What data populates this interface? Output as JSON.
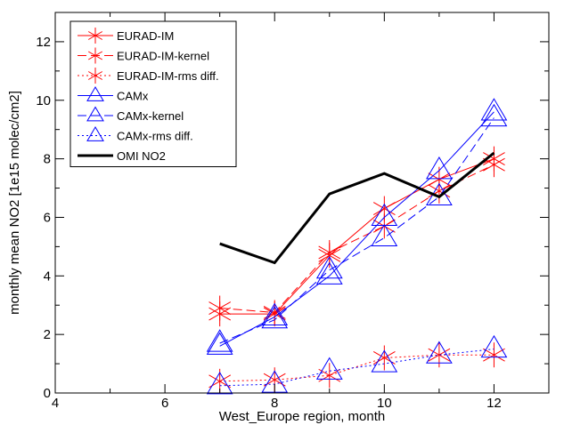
{
  "chart_data": {
    "type": "line",
    "title": "",
    "xlabel": "West_Europe region, month",
    "ylabel": "monthly mean NO2 [1e15 molec/cm2]",
    "xlim": [
      4,
      13
    ],
    "ylim": [
      0,
      13
    ],
    "xticks": [
      4,
      6,
      8,
      10,
      12
    ],
    "yticks": [
      0,
      2,
      4,
      6,
      8,
      10,
      12
    ],
    "grid": false,
    "legend_position": "top-left",
    "series": [
      {
        "name": "EURAD-IM",
        "color": "#ff0000",
        "dash": "solid",
        "marker": "asterisk",
        "x": [
          7,
          8,
          9,
          10,
          11,
          12
        ],
        "y": [
          2.7,
          2.7,
          4.7,
          6.3,
          7.3,
          8.0
        ]
      },
      {
        "name": "EURAD-IM-kernel",
        "color": "#ff0000",
        "dash": "dashed",
        "marker": "asterisk",
        "x": [
          7,
          8,
          9,
          10,
          11,
          12
        ],
        "y": [
          2.9,
          2.75,
          4.8,
          5.7,
          6.9,
          7.8
        ]
      },
      {
        "name": "EURAD-IM-rms diff.",
        "color": "#ff0000",
        "dash": "dotted",
        "marker": "asterisk",
        "x": [
          7,
          8,
          9,
          10,
          11,
          12
        ],
        "y": [
          0.4,
          0.45,
          0.6,
          1.2,
          1.3,
          1.3
        ]
      },
      {
        "name": "CAMx",
        "color": "#0000ff",
        "dash": "solid",
        "marker": "triangle",
        "x": [
          7,
          8,
          9,
          10,
          11,
          12
        ],
        "y": [
          1.6,
          2.6,
          4.0,
          6.0,
          7.6,
          9.6
        ]
      },
      {
        "name": "CAMx-kernel",
        "color": "#0000ff",
        "dash": "dashed",
        "marker": "triangle",
        "x": [
          7,
          8,
          9,
          10,
          11,
          12
        ],
        "y": [
          1.7,
          2.5,
          4.2,
          5.3,
          6.7,
          9.4
        ]
      },
      {
        "name": "CAMx-rms diff.",
        "color": "#0000ff",
        "dash": "dotted",
        "marker": "triangle",
        "x": [
          7,
          8,
          9,
          10,
          11,
          12
        ],
        "y": [
          0.25,
          0.3,
          0.75,
          1.0,
          1.3,
          1.5
        ]
      },
      {
        "name": "OMI NO2",
        "color": "#000000",
        "dash": "solid",
        "marker": "none",
        "thick": true,
        "x": [
          7,
          8,
          9,
          10,
          11,
          12
        ],
        "y": [
          5.1,
          4.45,
          6.8,
          7.5,
          6.7,
          8.2
        ]
      }
    ]
  }
}
